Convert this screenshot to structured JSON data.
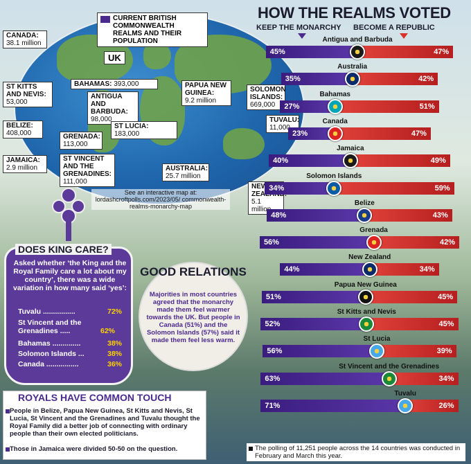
{
  "map": {
    "legend": "CURRENT BRITISH COMMONWEALTH REALMS AND THEIR POPULATION",
    "uk_label": "UK",
    "labels": [
      {
        "id": "canada",
        "name": "CANADA:",
        "value": "38.1 million"
      },
      {
        "id": "stkitts",
        "name": "ST KITTS AND NEVIS:",
        "value": "53,000"
      },
      {
        "id": "belize",
        "name": "BELIZE:",
        "value": "408,000"
      },
      {
        "id": "jamaica",
        "name": "JAMAICA:",
        "value": "2.9 million"
      },
      {
        "id": "bahamas",
        "name": "BAHAMAS:",
        "value": "393,000"
      },
      {
        "id": "antigua",
        "name": "ANTIGUA AND BARBUDA:",
        "value": "98,000"
      },
      {
        "id": "stlucia",
        "name": "ST LUCIA:",
        "value": "183,000"
      },
      {
        "id": "grenada",
        "name": "GRENADA:",
        "value": "113,000"
      },
      {
        "id": "stvincent",
        "name": "ST VINCENT AND THE GRENADINES:",
        "value": "111,000"
      },
      {
        "id": "png",
        "name": "PAPUA NEW GUINEA:",
        "value": "9.2 million"
      },
      {
        "id": "solomon",
        "name": "SOLOMON ISLANDS:",
        "value": "669,000"
      },
      {
        "id": "tuvalu",
        "name": "TUVALU:",
        "value": "11,000"
      },
      {
        "id": "australia",
        "name": "AUSTRALIA:",
        "value": "25.7 million"
      },
      {
        "id": "nz",
        "name": "NEW ZEALAND:",
        "value": "5.1 million"
      }
    ],
    "note": "See an interactive map at: lordashcroftpolls.com/2023/05/ commonwealth-realms-monarchy-map"
  },
  "chart_data": {
    "type": "bar",
    "title": "HOW THE REALMS VOTED",
    "legend": [
      "KEEP THE MONARCHY",
      "BECOME A REPUBLIC"
    ],
    "colors": {
      "keep": "#4b2a8e",
      "republic": "#d8322a"
    },
    "categories": [
      "Antigua and Barbuda",
      "Australia",
      "Bahamas",
      "Canada",
      "Jamaica",
      "Solomon Islands",
      "Belize",
      "Grenada",
      "New Zealand",
      "Papua New Guinea",
      "St Kitts and Nevis",
      "St Lucia",
      "St Vincent and the Grenadines",
      "Tuvalu"
    ],
    "series": [
      {
        "name": "KEEP THE MONARCHY",
        "values": [
          45,
          35,
          27,
          23,
          40,
          34,
          48,
          56,
          44,
          51,
          52,
          56,
          63,
          71
        ]
      },
      {
        "name": "BECOME A REPUBLIC",
        "values": [
          47,
          42,
          51,
          47,
          49,
          59,
          43,
          42,
          34,
          45,
          45,
          39,
          34,
          26
        ]
      }
    ],
    "value_suffix": "%"
  },
  "care": {
    "title": "DOES KING CARE?",
    "body": "Asked whether ‘the King and the Royal Family care a lot about my country’, there was a wide variation in how many said ‘yes’:",
    "rows": [
      {
        "label": "Tuvalu ................",
        "pct": "72%"
      },
      {
        "label": "St Vincent and the Grenadines .....",
        "pct": "62%"
      },
      {
        "label": "Bahamas ..............",
        "pct": "38%"
      },
      {
        "label": "Solomon Islands ...",
        "pct": "38%"
      },
      {
        "label": "Canada ................",
        "pct": "36%"
      }
    ]
  },
  "good": {
    "title": "GOOD RELATIONS",
    "body": "Majorities in most countries agreed that the monarchy made them feel warmer towards the UK. But people in Canada (51%) and the Solomon Islands (57%) said it made them feel less warm."
  },
  "touch": {
    "title": "ROYALS HAVE COMMON TOUCH",
    "p1": "People in Belize, Papua New Guinea, St Kitts and Nevis, St Lucia, St Vincent and the Grenadines and Tuvalu thought the Royal Family did a better job of connecting with ordinary people than their own elected politicians.",
    "p2": "Those in Jamaica were divided 50-50 on the question."
  },
  "footnote": "The polling of 11,251 people across the 14 countries was conducted in February and March this year."
}
